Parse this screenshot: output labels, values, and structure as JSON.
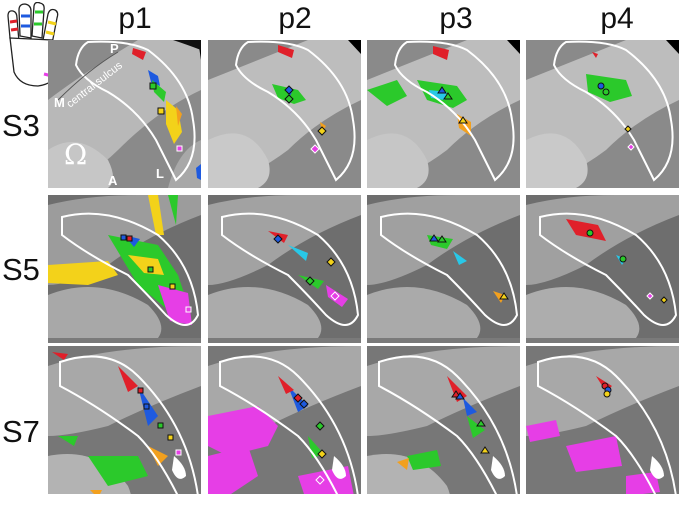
{
  "columns": [
    "p1",
    "p2",
    "p3",
    "p4"
  ],
  "rows": [
    "S3",
    "S5",
    "S7"
  ],
  "annotations": {
    "P": "P",
    "M": "M",
    "A": "A",
    "L": "L",
    "sulcus": "central sulcus",
    "omega": "Ω"
  },
  "colors": {
    "thumb": "#e0202a",
    "index": "#1e5adf",
    "middle": "#2bc92b",
    "ring": "#f3d21a",
    "little": "#e63ee6",
    "orange": "#f2a01e",
    "cyan": "#28c8e8",
    "outline": "#ffffff",
    "gyrus_light": "#c9c9c9",
    "sulcus_dark": "#6c6c6c"
  }
}
